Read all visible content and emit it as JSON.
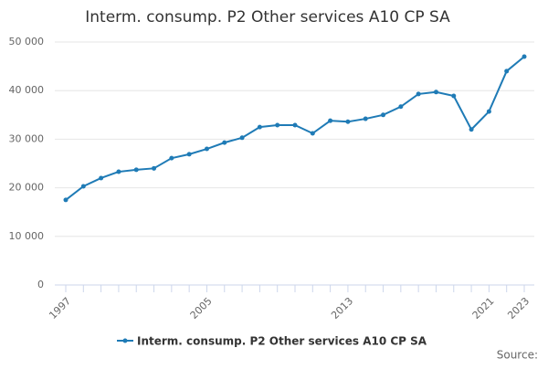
{
  "chart_data": {
    "type": "line",
    "title": "Interm. consump. P2 Other services A10 CP SA",
    "x": [
      1997,
      1998,
      1999,
      2000,
      2001,
      2002,
      2003,
      2004,
      2005,
      2006,
      2007,
      2008,
      2009,
      2010,
      2011,
      2012,
      2013,
      2014,
      2015,
      2016,
      2017,
      2018,
      2019,
      2020,
      2021,
      2022,
      2023
    ],
    "series": [
      {
        "name": "Interm. consump. P2 Other services A10 CP SA",
        "color": "#1f7bb6",
        "values": [
          17500,
          20300,
          22000,
          23300,
          23700,
          24000,
          26100,
          26900,
          28000,
          29300,
          30300,
          32500,
          32900,
          32900,
          31200,
          33800,
          33600,
          34200,
          35000,
          36700,
          39300,
          39700,
          38900,
          32000,
          35700,
          44000,
          47000
        ]
      }
    ],
    "xlim": [
      1997,
      2023
    ],
    "xticks": [
      1997,
      2005,
      2013,
      2021,
      2023
    ],
    "ylim": [
      0,
      50000
    ],
    "yticks": [
      0,
      {
        "value": 10000,
        "label": "10 000"
      },
      {
        "value": 20000,
        "label": "20 000"
      },
      {
        "value": 30000,
        "label": "30 000"
      },
      {
        "value": 40000,
        "label": "40 000"
      },
      {
        "value": 50000,
        "label": "50 000"
      }
    ],
    "grid": true,
    "source": "Source:"
  }
}
